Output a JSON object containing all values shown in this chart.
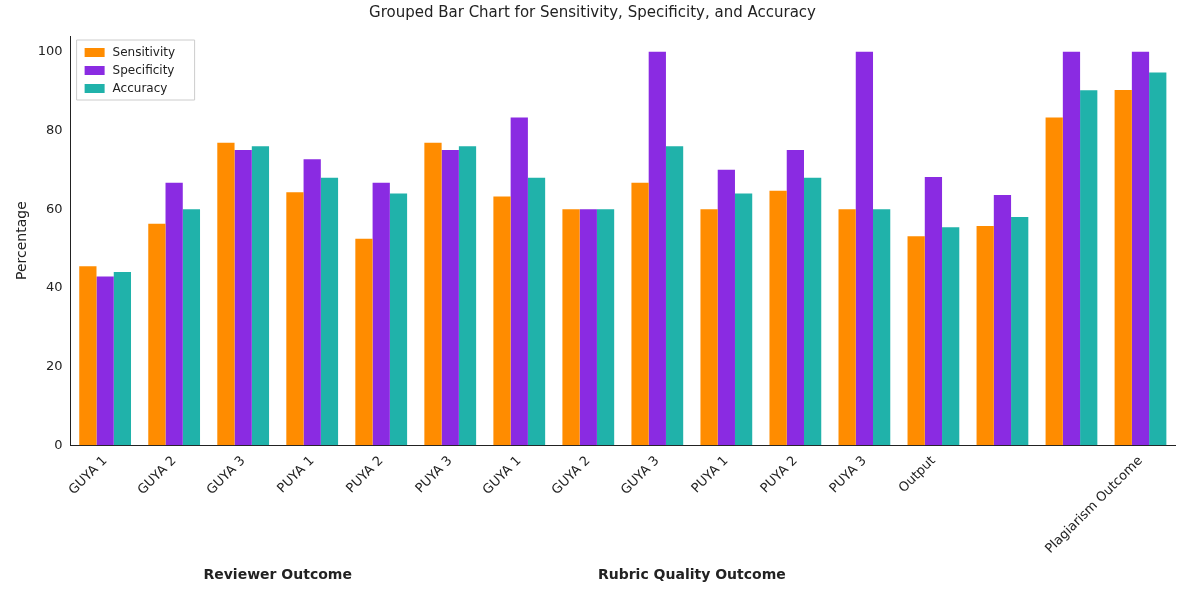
{
  "chart_data": {
    "type": "bar",
    "title": "Grouped Bar Chart for Sensitivity, Specificity, and Accuracy",
    "ylabel": "Percentage",
    "categories": [
      "GUYA 1",
      "GUYA 2",
      "GUYA 3",
      "PUYA 1",
      "PUYA 2",
      "PUYA 3",
      "GUYA 1",
      "GUYA 2",
      "GUYA 3",
      "PUYA 1",
      "PUYA 2",
      "PUYA 3",
      "Output",
      null,
      null,
      "Plagiarism Outcome"
    ],
    "series": [
      {
        "name": "Sensitivity",
        "color": "#ff8c00",
        "values": [
          45.5,
          56.3,
          76.9,
          64.3,
          52.5,
          76.9,
          63.2,
          60,
          66.7,
          60,
          64.7,
          60,
          53.1,
          55.7,
          83.3,
          90.3
        ]
      },
      {
        "name": "Specificity",
        "color": "#8a2be2",
        "values": [
          42.9,
          66.7,
          75,
          72.7,
          66.7,
          75,
          83.3,
          60,
          100,
          70,
          75,
          100,
          68.2,
          63.6,
          100,
          100
        ]
      },
      {
        "name": "Accuracy",
        "color": "#20b2aa",
        "values": [
          44,
          60,
          76,
          68,
          64,
          76,
          68,
          60,
          76,
          64,
          68,
          60,
          55.4,
          58,
          90.2,
          94.7
        ]
      }
    ],
    "ylim": [
      0,
      104
    ],
    "yticks": [
      0,
      20,
      40,
      60,
      80,
      100
    ],
    "grid": false,
    "legend": "top left",
    "annotations": [
      "Reviewer Outcome",
      "Rubric Quality Outcome"
    ]
  }
}
